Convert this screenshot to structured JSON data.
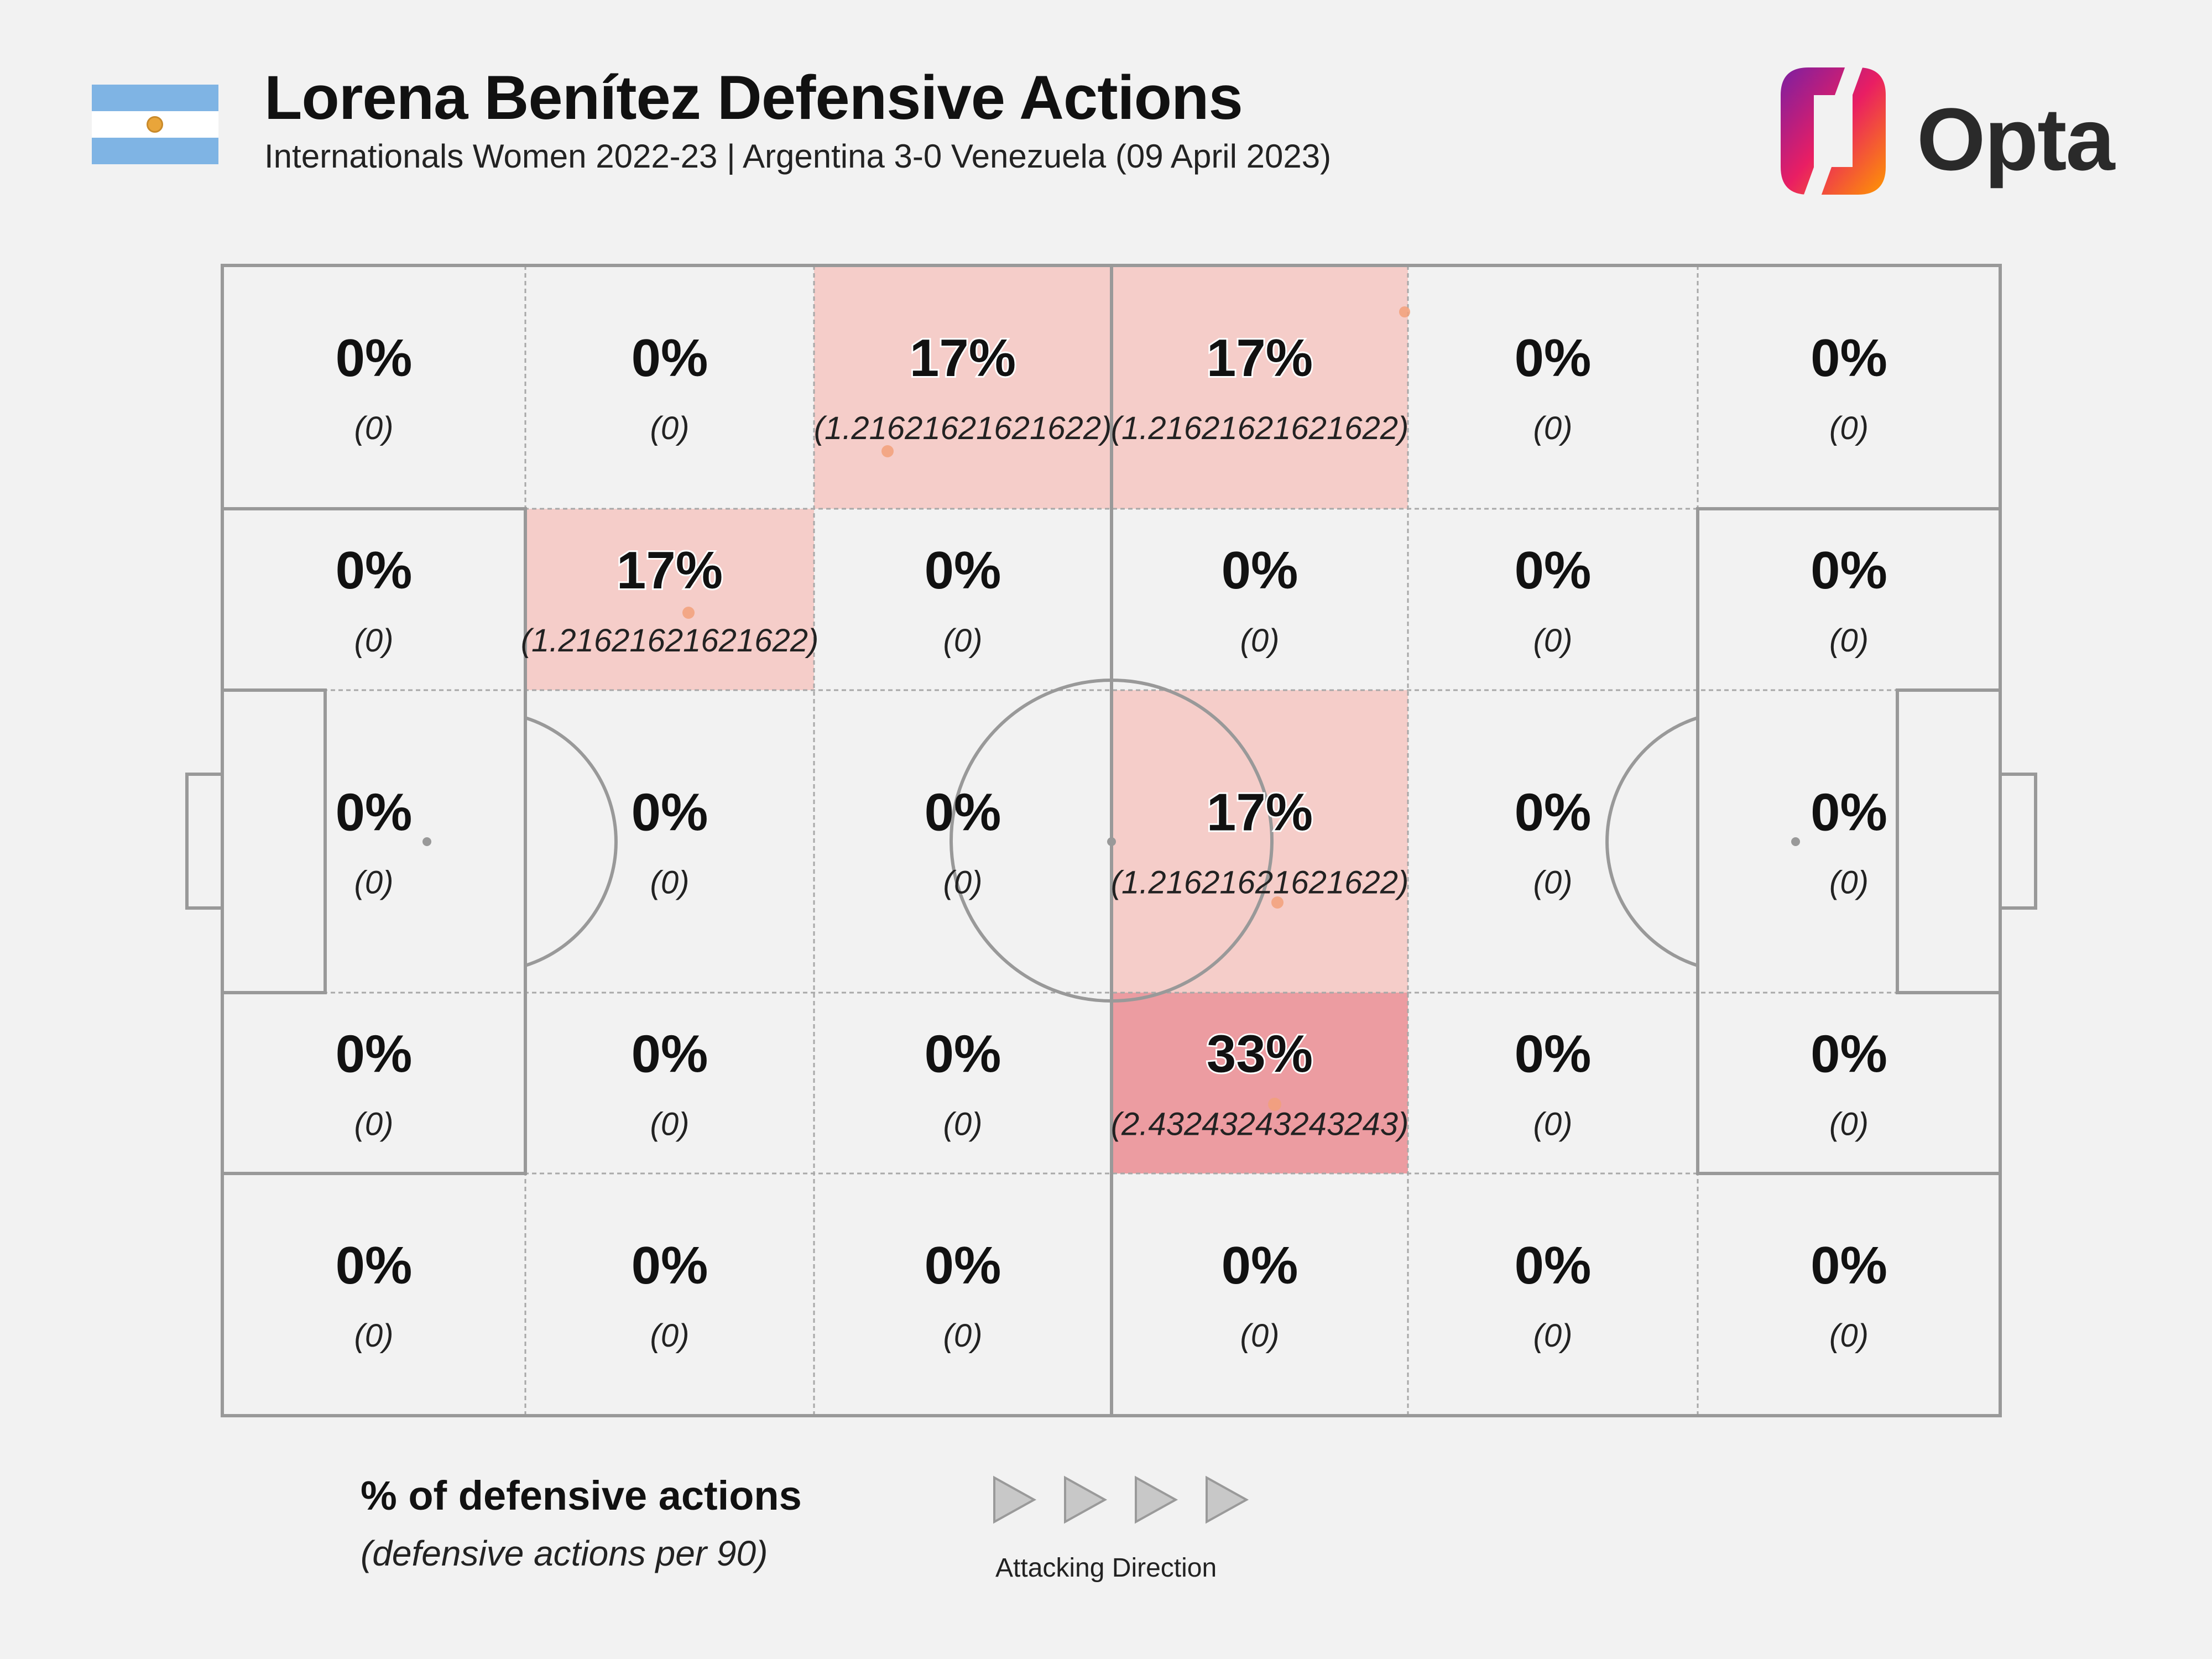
{
  "header": {
    "title": "Lorena Benítez Defensive Actions",
    "subtitle": "Internationals Women 2022-23 | Argentina 3-0 Venezuela (09 April 2023)",
    "logo_text": "Opta"
  },
  "legend": {
    "title": "% of defensive actions",
    "subtitle": "(defensive actions per 90)",
    "direction_label": "Attacking Direction"
  },
  "colors": {
    "background": "#f2f2f2",
    "pitch_lines": "#999999",
    "zone_low": "#f5cdc9",
    "zone_high": "#ec9ca1",
    "action_dot": "#f2a07a"
  },
  "chart_data": {
    "type": "heatmap",
    "title": "Lorena Benítez Defensive Actions",
    "columns": 6,
    "rows": 5,
    "cells": [
      [
        "0%",
        "0%",
        "17%",
        "17%",
        "0%",
        "0%"
      ],
      [
        "0%",
        "17%",
        "0%",
        "0%",
        "0%",
        "0%"
      ],
      [
        "0%",
        "0%",
        "0%",
        "17%",
        "0%",
        "0%"
      ],
      [
        "0%",
        "0%",
        "0%",
        "33%",
        "0%",
        "0%"
      ],
      [
        "0%",
        "0%",
        "0%",
        "0%",
        "0%",
        "0%"
      ]
    ],
    "values": [
      [
        0,
        0,
        17,
        17,
        0,
        0
      ],
      [
        0,
        17,
        0,
        0,
        0,
        0
      ],
      [
        0,
        0,
        0,
        17,
        0,
        0
      ],
      [
        0,
        0,
        0,
        33,
        0,
        0
      ],
      [
        0,
        0,
        0,
        0,
        0,
        0
      ]
    ],
    "counts": [
      [
        "(0)",
        "(0)",
        "(1.21621621621622)",
        "(1.21621621621622)",
        "(0)",
        "(0)"
      ],
      [
        "(0)",
        "(1.21621621621622)",
        "(0)",
        "(0)",
        "(0)",
        "(0)"
      ],
      [
        "(0)",
        "(0)",
        "(0)",
        "(1.21621621621622)",
        "(0)",
        "(0)"
      ],
      [
        "(0)",
        "(0)",
        "(0)",
        "(2.43243243243243)",
        "(0)",
        "(0)"
      ],
      [
        "(0)",
        "(0)",
        "(0)",
        "(0)",
        "(0)",
        "(0)"
      ]
    ]
  }
}
